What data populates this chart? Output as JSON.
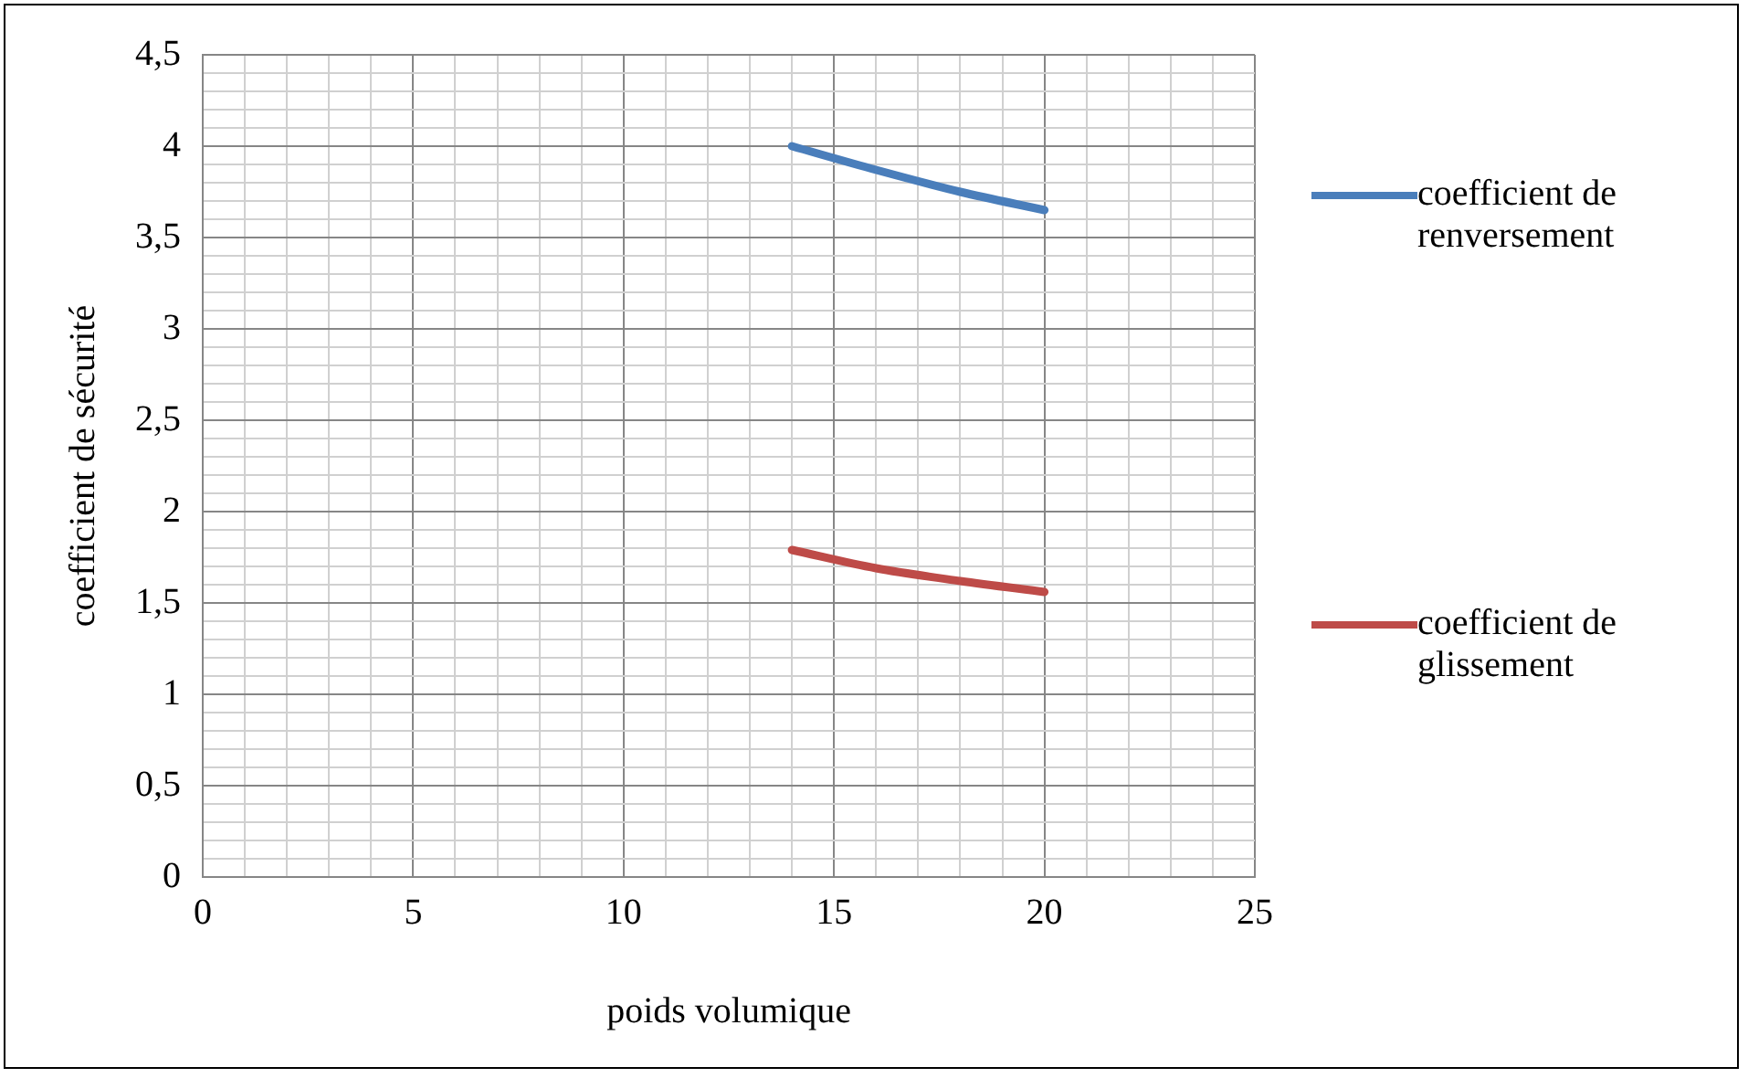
{
  "chart_data": {
    "type": "line",
    "xlabel": "poids volumique",
    "ylabel": "coefficient de sécurité",
    "x": [
      14,
      16,
      18,
      20
    ],
    "series": [
      {
        "name": "coefficient de renversement",
        "color": "#4a7ebb",
        "values": [
          4.0,
          3.87,
          3.75,
          3.65
        ]
      },
      {
        "name": "coefficient de glissement",
        "color": "#be4b48",
        "values": [
          1.79,
          1.69,
          1.62,
          1.56
        ]
      }
    ],
    "xlim": [
      0,
      25
    ],
    "xticks": [
      0,
      {
        "value": 1,
        "label": null
      },
      {
        "value": 2,
        "label": null
      },
      {
        "value": 3,
        "label": null
      },
      {
        "value": 4,
        "label": null
      },
      5,
      {
        "value": 6,
        "label": null
      },
      {
        "value": 7,
        "label": null
      },
      {
        "value": 8,
        "label": null
      },
      {
        "value": 9,
        "label": null
      },
      10,
      {
        "value": 11,
        "label": null
      },
      {
        "value": 12,
        "label": null
      },
      {
        "value": 13,
        "label": null
      },
      {
        "value": 14,
        "label": null
      },
      15,
      {
        "value": 16,
        "label": null
      },
      {
        "value": 17,
        "label": null
      },
      {
        "value": 18,
        "label": null
      },
      {
        "value": 19,
        "label": null
      },
      20,
      {
        "value": 21,
        "label": null
      },
      {
        "value": 22,
        "label": null
      },
      {
        "value": 23,
        "label": null
      },
      {
        "value": 24,
        "label": null
      },
      25
    ],
    "ylim": [
      0,
      4.5
    ],
    "yticks": [
      {
        "value": 0,
        "label": "0"
      },
      {
        "value": 0.1,
        "label": null
      },
      {
        "value": 0.2,
        "label": null
      },
      {
        "value": 0.3,
        "label": null
      },
      {
        "value": 0.4,
        "label": null
      },
      {
        "value": 0.5,
        "label": "0,5"
      },
      {
        "value": 0.6,
        "label": null
      },
      {
        "value": 0.7,
        "label": null
      },
      {
        "value": 0.8,
        "label": null
      },
      {
        "value": 0.9,
        "label": null
      },
      {
        "value": 1,
        "label": "1"
      },
      {
        "value": 1.1,
        "label": null
      },
      {
        "value": 1.2,
        "label": null
      },
      {
        "value": 1.3,
        "label": null
      },
      {
        "value": 1.4,
        "label": null
      },
      {
        "value": 1.5,
        "label": "1,5"
      },
      {
        "value": 1.6,
        "label": null
      },
      {
        "value": 1.7,
        "label": null
      },
      {
        "value": 1.8,
        "label": null
      },
      {
        "value": 1.9,
        "label": null
      },
      {
        "value": 2,
        "label": "2"
      },
      {
        "value": 2.1,
        "label": null
      },
      {
        "value": 2.2,
        "label": null
      },
      {
        "value": 2.3,
        "label": null
      },
      {
        "value": 2.4,
        "label": null
      },
      {
        "value": 2.5,
        "label": "2,5"
      },
      {
        "value": 2.6,
        "label": null
      },
      {
        "value": 2.7,
        "label": null
      },
      {
        "value": 2.8,
        "label": null
      },
      {
        "value": 2.9,
        "label": null
      },
      {
        "value": 3,
        "label": "3"
      },
      {
        "value": 3.1,
        "label": null
      },
      {
        "value": 3.2,
        "label": null
      },
      {
        "value": 3.3,
        "label": null
      },
      {
        "value": 3.4,
        "label": null
      },
      {
        "value": 3.5,
        "label": "3,5"
      },
      {
        "value": 3.6,
        "label": null
      },
      {
        "value": 3.7,
        "label": null
      },
      {
        "value": 3.8,
        "label": null
      },
      {
        "value": 3.9,
        "label": null
      },
      {
        "value": 4,
        "label": "4"
      },
      {
        "value": 4.1,
        "label": null
      },
      {
        "value": 4.2,
        "label": null
      },
      {
        "value": 4.3,
        "label": null
      },
      {
        "value": 4.4,
        "label": null
      },
      {
        "value": 4.5,
        "label": "4,5"
      }
    ],
    "grid": true,
    "legend": "right",
    "marker": "none",
    "line_style": "solid"
  }
}
